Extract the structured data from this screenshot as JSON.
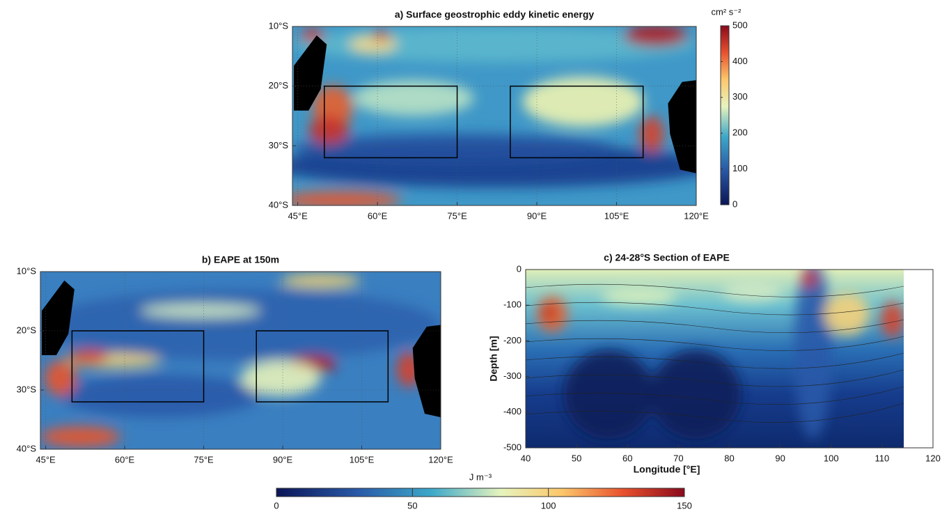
{
  "chart_data": [
    {
      "type": "map",
      "title": "a) Surface geostrophic eddy kinetic energy",
      "xlim": [
        44,
        120
      ],
      "ylim": [
        -40,
        -10
      ],
      "xticks": [
        {
          "value": 45,
          "label": "45°E"
        },
        {
          "value": 60,
          "label": "60°E"
        },
        {
          "value": 75,
          "label": "75°E"
        },
        {
          "value": 90,
          "label": "90°E"
        },
        {
          "value": 105,
          "label": "105°E"
        },
        {
          "value": 120,
          "label": "120°E"
        }
      ],
      "yticks": [
        {
          "value": -10,
          "label": "10°S"
        },
        {
          "value": -20,
          "label": "20°S"
        },
        {
          "value": -30,
          "label": "30°S"
        },
        {
          "value": -40,
          "label": "40°S"
        }
      ],
      "grid": true,
      "boxes": [
        {
          "lon": [
            50,
            75
          ],
          "lat": [
            -32,
            -20
          ]
        },
        {
          "lon": [
            85,
            110
          ],
          "lat": [
            -32,
            -20
          ]
        }
      ],
      "colorbar": {
        "label": "cm² s⁻²",
        "lim": [
          0,
          500
        ],
        "ticks": [
          0,
          100,
          200,
          300,
          400,
          500
        ],
        "orientation": "vertical"
      }
    },
    {
      "type": "map",
      "title": "b) EAPE at 150m",
      "xlim": [
        44,
        120
      ],
      "ylim": [
        -40,
        -10
      ],
      "xticks": [
        {
          "value": 45,
          "label": "45°E"
        },
        {
          "value": 60,
          "label": "60°E"
        },
        {
          "value": 75,
          "label": "75°E"
        },
        {
          "value": 90,
          "label": "90°E"
        },
        {
          "value": 105,
          "label": "105°E"
        },
        {
          "value": 120,
          "label": "120°E"
        }
      ],
      "yticks": [
        {
          "value": -10,
          "label": "10°S"
        },
        {
          "value": -20,
          "label": "20°S"
        },
        {
          "value": -30,
          "label": "30°S"
        },
        {
          "value": -40,
          "label": "40°S"
        }
      ],
      "grid": true,
      "boxes": [
        {
          "lon": [
            50,
            75
          ],
          "lat": [
            -32,
            -20
          ]
        },
        {
          "lon": [
            85,
            110
          ],
          "lat": [
            -32,
            -20
          ]
        }
      ],
      "colorbar": {
        "label": "J m⁻³",
        "lim": [
          0,
          150
        ],
        "ticks": [
          0,
          50,
          100,
          150
        ],
        "orientation": "horizontal"
      }
    },
    {
      "type": "contour",
      "title": "c) 24-28°S Section of EAPE",
      "xlabel": "Longitude [°E]",
      "ylabel": "Depth [m]",
      "xlim": [
        40,
        120
      ],
      "ylim": [
        -500,
        0
      ],
      "xticks": [
        40,
        50,
        60,
        70,
        80,
        90,
        100,
        110,
        120
      ],
      "yticks": [
        0,
        -100,
        -200,
        -300,
        -400,
        -500
      ],
      "grid": false
    }
  ]
}
